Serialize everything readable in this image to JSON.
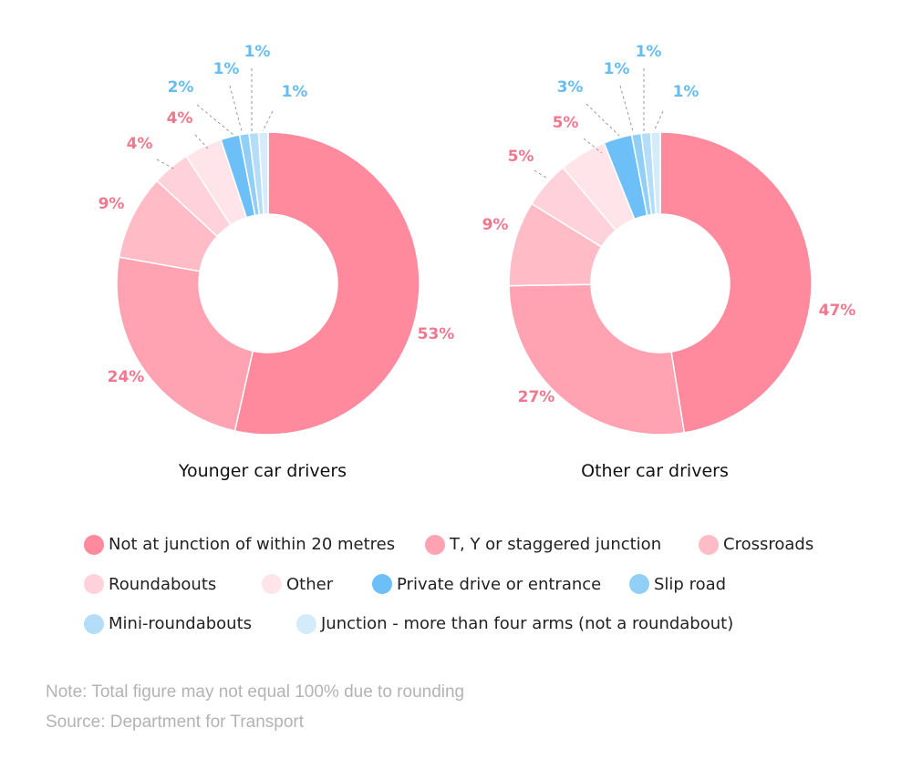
{
  "chart_data": [
    {
      "type": "pie",
      "title": "Younger car drivers",
      "categories": [
        "Not at junction of within 20 metres",
        "T, Y or staggered junction",
        "Crossroads",
        "Roundabouts",
        "Other",
        "Private drive or entrance",
        "Slip road",
        "Mini-roundabouts",
        "Junction - more than four arms (not a roundabout)"
      ],
      "values": [
        53,
        24,
        9,
        4,
        4,
        2,
        1,
        1,
        1
      ],
      "labels": [
        "53%",
        "24%",
        "9%",
        "4%",
        "4%",
        "2%",
        "1%",
        "1%",
        "1%"
      ]
    },
    {
      "type": "pie",
      "title": "Other car drivers",
      "categories": [
        "Not at junction of within 20 metres",
        "T, Y or staggered junction",
        "Crossroads",
        "Roundabouts",
        "Other",
        "Private drive or entrance",
        "Slip road",
        "Mini-roundabouts",
        "Junction - more than four arms (not a roundabout)"
      ],
      "values": [
        47,
        27,
        9,
        5,
        5,
        3,
        1,
        1,
        1
      ],
      "labels": [
        "47%",
        "27%",
        "9%",
        "5%",
        "5%",
        "3%",
        "1%",
        "1%",
        "1%"
      ]
    }
  ],
  "colors": [
    "#ff8a9e",
    "#ffa3b2",
    "#ffbcc7",
    "#ffd1da",
    "#ffe4e9",
    "#6dc0f7",
    "#92cff7",
    "#b3ddf9",
    "#d4ebfb"
  ],
  "label_colors": {
    "pink": "#f0788e",
    "blue": "#66bdf2"
  },
  "legend": [
    [
      "Not at junction of within 20 metres",
      "T, Y or staggered junction",
      "Crossroads"
    ],
    [
      "Roundabouts",
      "Other",
      "Private drive or entrance",
      "Slip road"
    ],
    [
      "Mini-roundabouts",
      "Junction - more than four arms (not a roundabout)"
    ]
  ],
  "footer": {
    "note": "Note: Total figure may not equal 100% due to rounding",
    "source": "Source: Department for Transport"
  }
}
